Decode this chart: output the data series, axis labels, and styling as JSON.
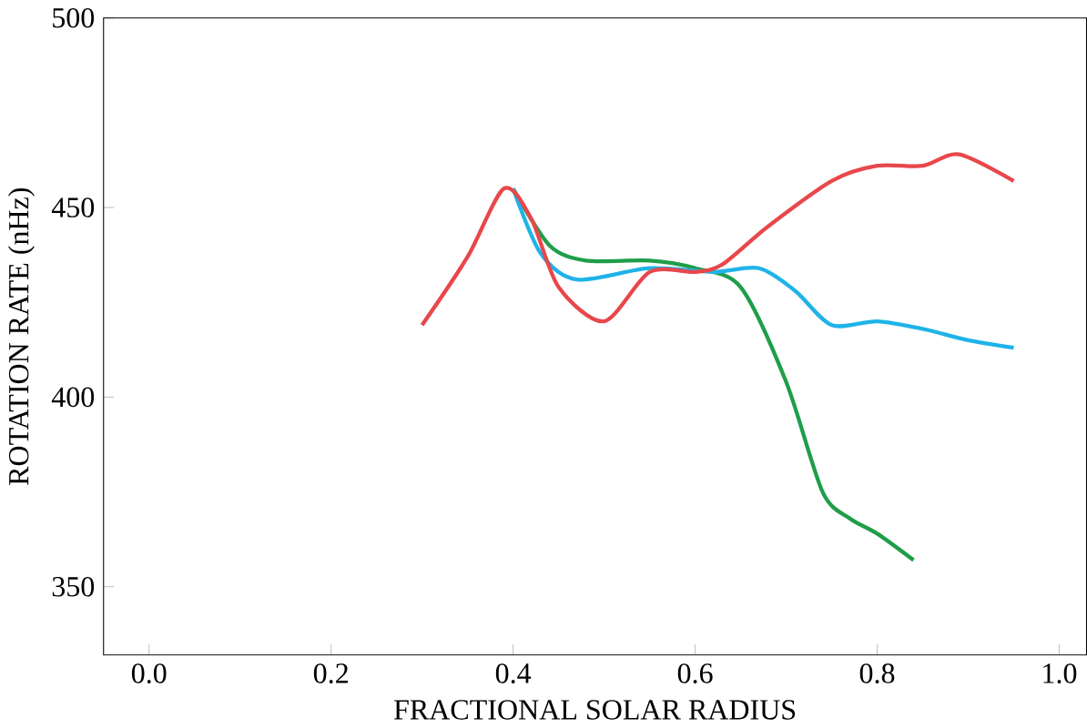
{
  "chart_data": {
    "type": "line",
    "xlabel": "FRACTIONAL SOLAR RADIUS",
    "ylabel": "ROTATION RATE (nHz)",
    "xlim": [
      -0.05,
      1.03
    ],
    "ylim": [
      332,
      500
    ],
    "xticks": [
      {
        "value": 0,
        "label": "0.0"
      },
      0.2,
      0.4,
      0.6,
      0.8,
      {
        "value": 1,
        "label": "1.0"
      }
    ],
    "yticks": [
      350,
      400,
      450,
      500
    ],
    "grid": false,
    "marker": "none",
    "line_style": "solid",
    "series": [
      {
        "color": "#1f9e4a",
        "x": [
          0.4,
          0.44,
          0.48,
          0.55,
          0.6,
          0.65,
          0.7,
          0.74,
          0.77,
          0.8,
          0.84
        ],
        "values": [
          455,
          440,
          436,
          436,
          434,
          429,
          404,
          375,
          368,
          364,
          357
        ]
      },
      {
        "color": "#1fb3e8",
        "x": [
          0.4,
          0.43,
          0.47,
          0.55,
          0.62,
          0.67,
          0.71,
          0.75,
          0.8,
          0.85,
          0.9,
          0.95
        ],
        "values": [
          455,
          438,
          431,
          434,
          433,
          434,
          428,
          419,
          420,
          418,
          415,
          413
        ]
      },
      {
        "color": "#e8474b",
        "x": [
          0.3,
          0.35,
          0.39,
          0.42,
          0.45,
          0.5,
          0.55,
          0.6,
          0.63,
          0.68,
          0.75,
          0.8,
          0.85,
          0.89,
          0.95
        ],
        "values": [
          419,
          437,
          455,
          447,
          429,
          420,
          433,
          433,
          435,
          445,
          457,
          461,
          461,
          464,
          457
        ]
      }
    ]
  }
}
